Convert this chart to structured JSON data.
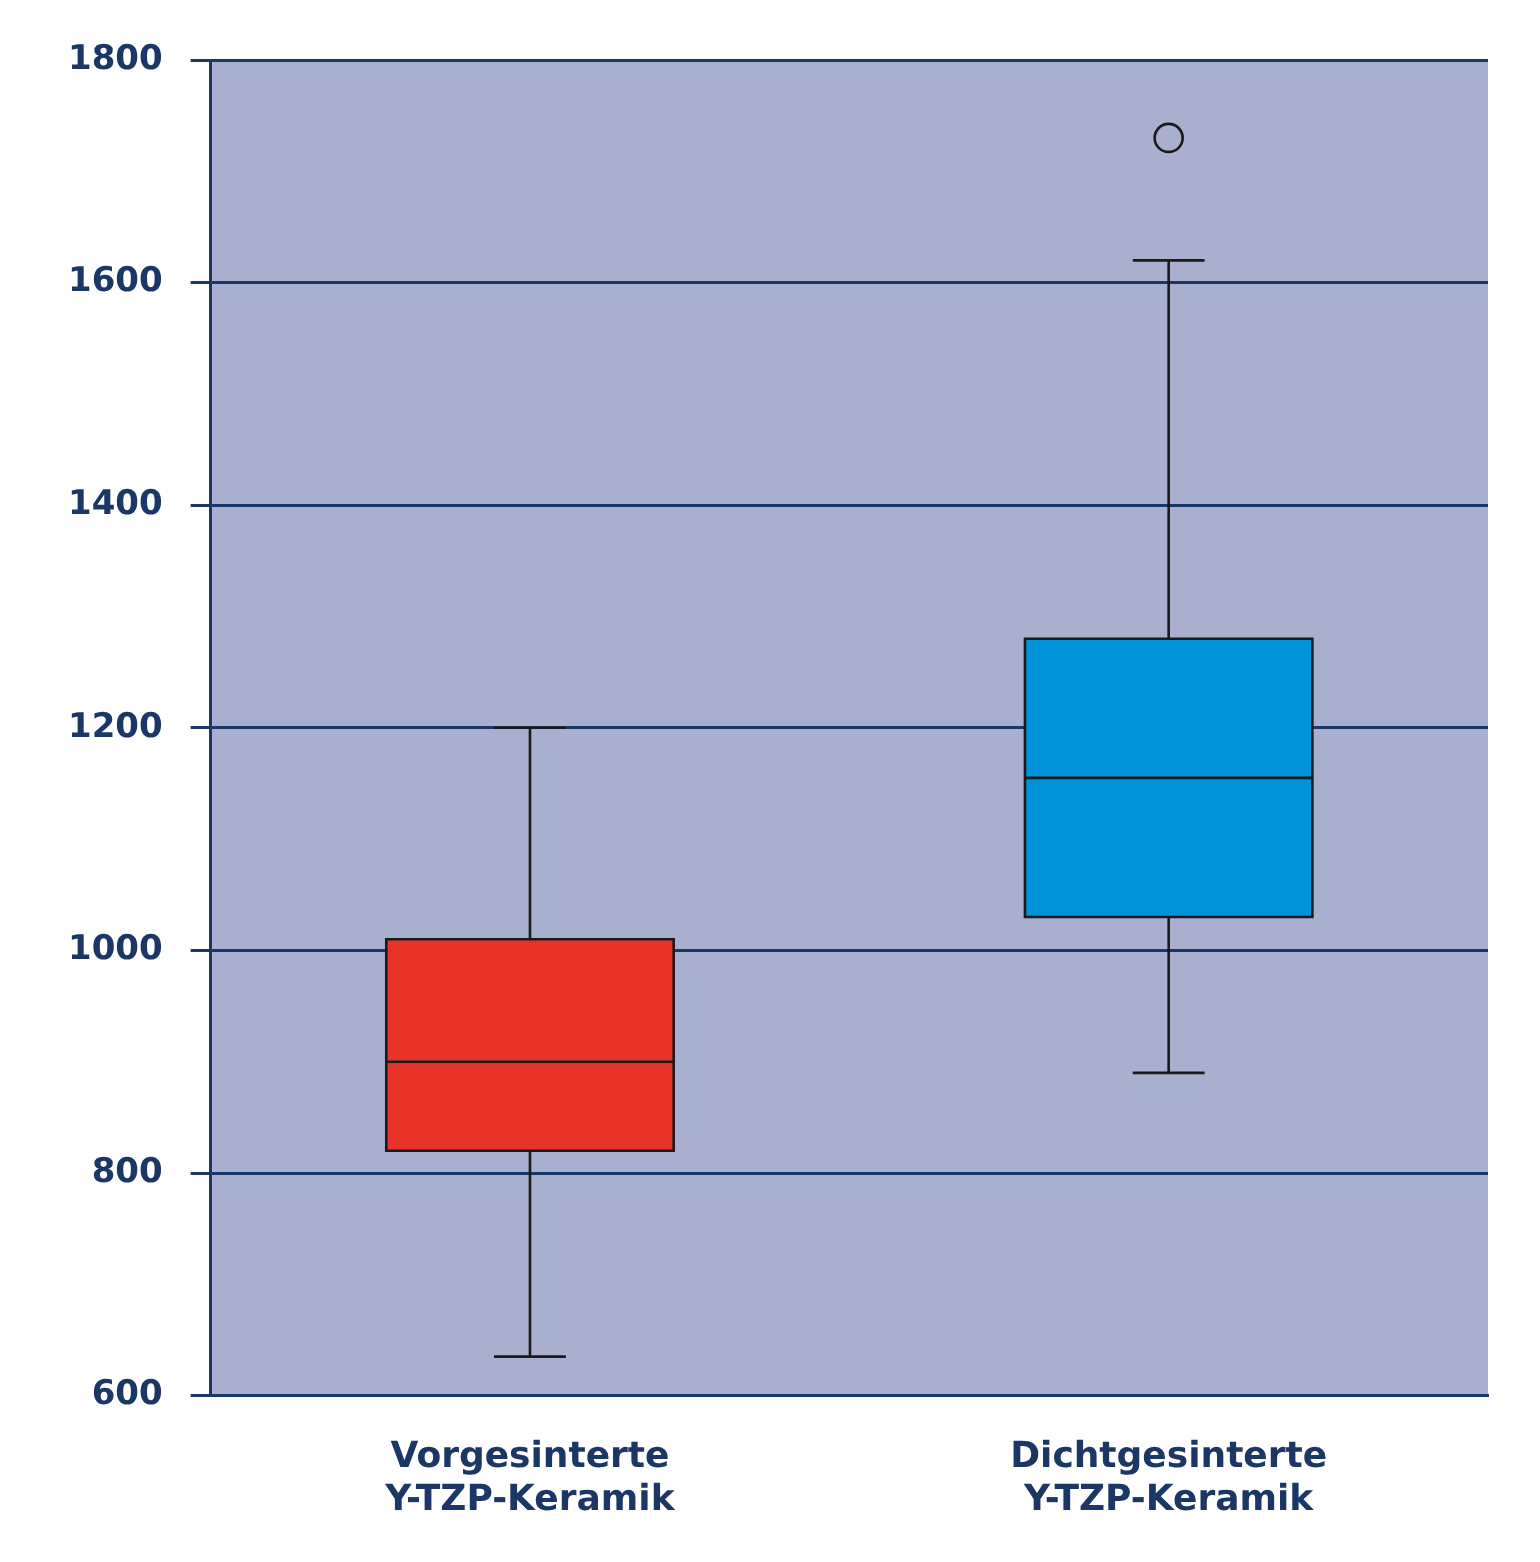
{
  "chart_data": {
    "type": "box",
    "categories": [
      "Vorgesinterte Y-TZP-Keramik",
      "Dichtgesinterte Y-TZP-Keramik"
    ],
    "boxes": [
      {
        "low": 635,
        "q1": 820,
        "median": 900,
        "q3": 1010,
        "high": 1200
      },
      {
        "low": 890,
        "q1": 1030,
        "median": 1155,
        "q3": 1280,
        "high": 1620,
        "outliers": [
          1730
        ]
      }
    ],
    "colors": [
      "#e8332a",
      "#0093d9"
    ],
    "ylim": [
      600,
      1800
    ],
    "yticks": [
      600,
      800,
      1000,
      1200,
      1400,
      1600,
      1800
    ],
    "grid": "y"
  }
}
